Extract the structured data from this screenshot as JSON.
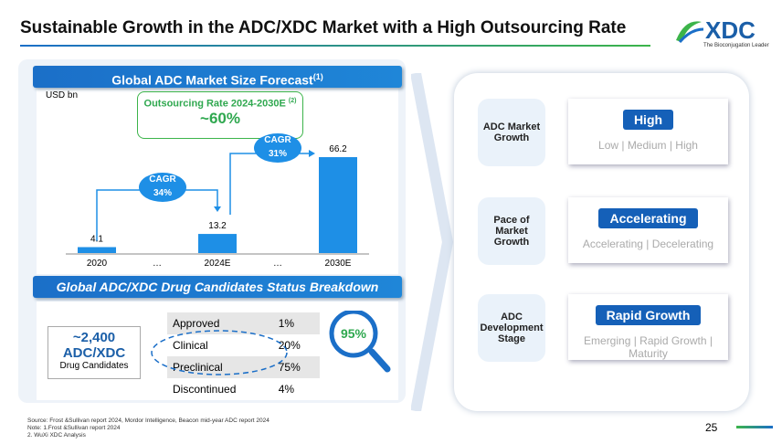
{
  "header": {
    "title": "Sustainable Growth in the ADC/XDC Market with a High Outsourcing Rate",
    "logo": "XDC",
    "logo_tagline": "The Bioconjugation Leader"
  },
  "market_forecast": {
    "title": "Global ADC Market Size Forecast",
    "title_note": "(1)",
    "unit": "USD bn",
    "outsourcing": {
      "label": "Outsourcing Rate 2024-2030E",
      "note": "(2)",
      "value": "~60%"
    },
    "chart": {
      "type": "bar",
      "categories": [
        "2020",
        "…",
        "2024E",
        "…",
        "2030E"
      ],
      "values": [
        4.1,
        null,
        13.2,
        null,
        66.2
      ],
      "color": "#1e8fe6"
    },
    "cagr": [
      {
        "label": "CAGR",
        "value": "34%"
      },
      {
        "label": "CAGR",
        "value": "31%"
      }
    ]
  },
  "candidates": {
    "title": "Global ADC/XDC Drug Candidates Status Breakdown",
    "count": "~2,400",
    "count_label": "ADC/XDC",
    "count_caption": "Drug Candidates",
    "table": {
      "rows": [
        [
          "Approved",
          "1%"
        ],
        [
          "Clinical",
          "20%"
        ],
        [
          "Preclinical",
          "75%"
        ],
        [
          "Discontinued",
          "4%"
        ]
      ]
    },
    "highlight": "95%"
  },
  "outlook": [
    {
      "label": "ADC Market Growth",
      "status": "High",
      "scale": "Low | Medium | High"
    },
    {
      "label": "Pace of Market Growth",
      "status": "Accelerating",
      "scale": "Accelerating | Decelerating"
    },
    {
      "label": "ADC Development Stage",
      "status": "Rapid Growth",
      "scale": "Emerging | Rapid Growth | Maturity"
    }
  ],
  "footer": {
    "source": "Source: Frost &Sullivan report 2024, Mordor Intelligence, Beacon mid-year ADC report 2024",
    "notes": [
      "Note: 1.Frost &Sullivan report 2024",
      "2. WuXi XDC Analysis"
    ],
    "page": "25"
  }
}
